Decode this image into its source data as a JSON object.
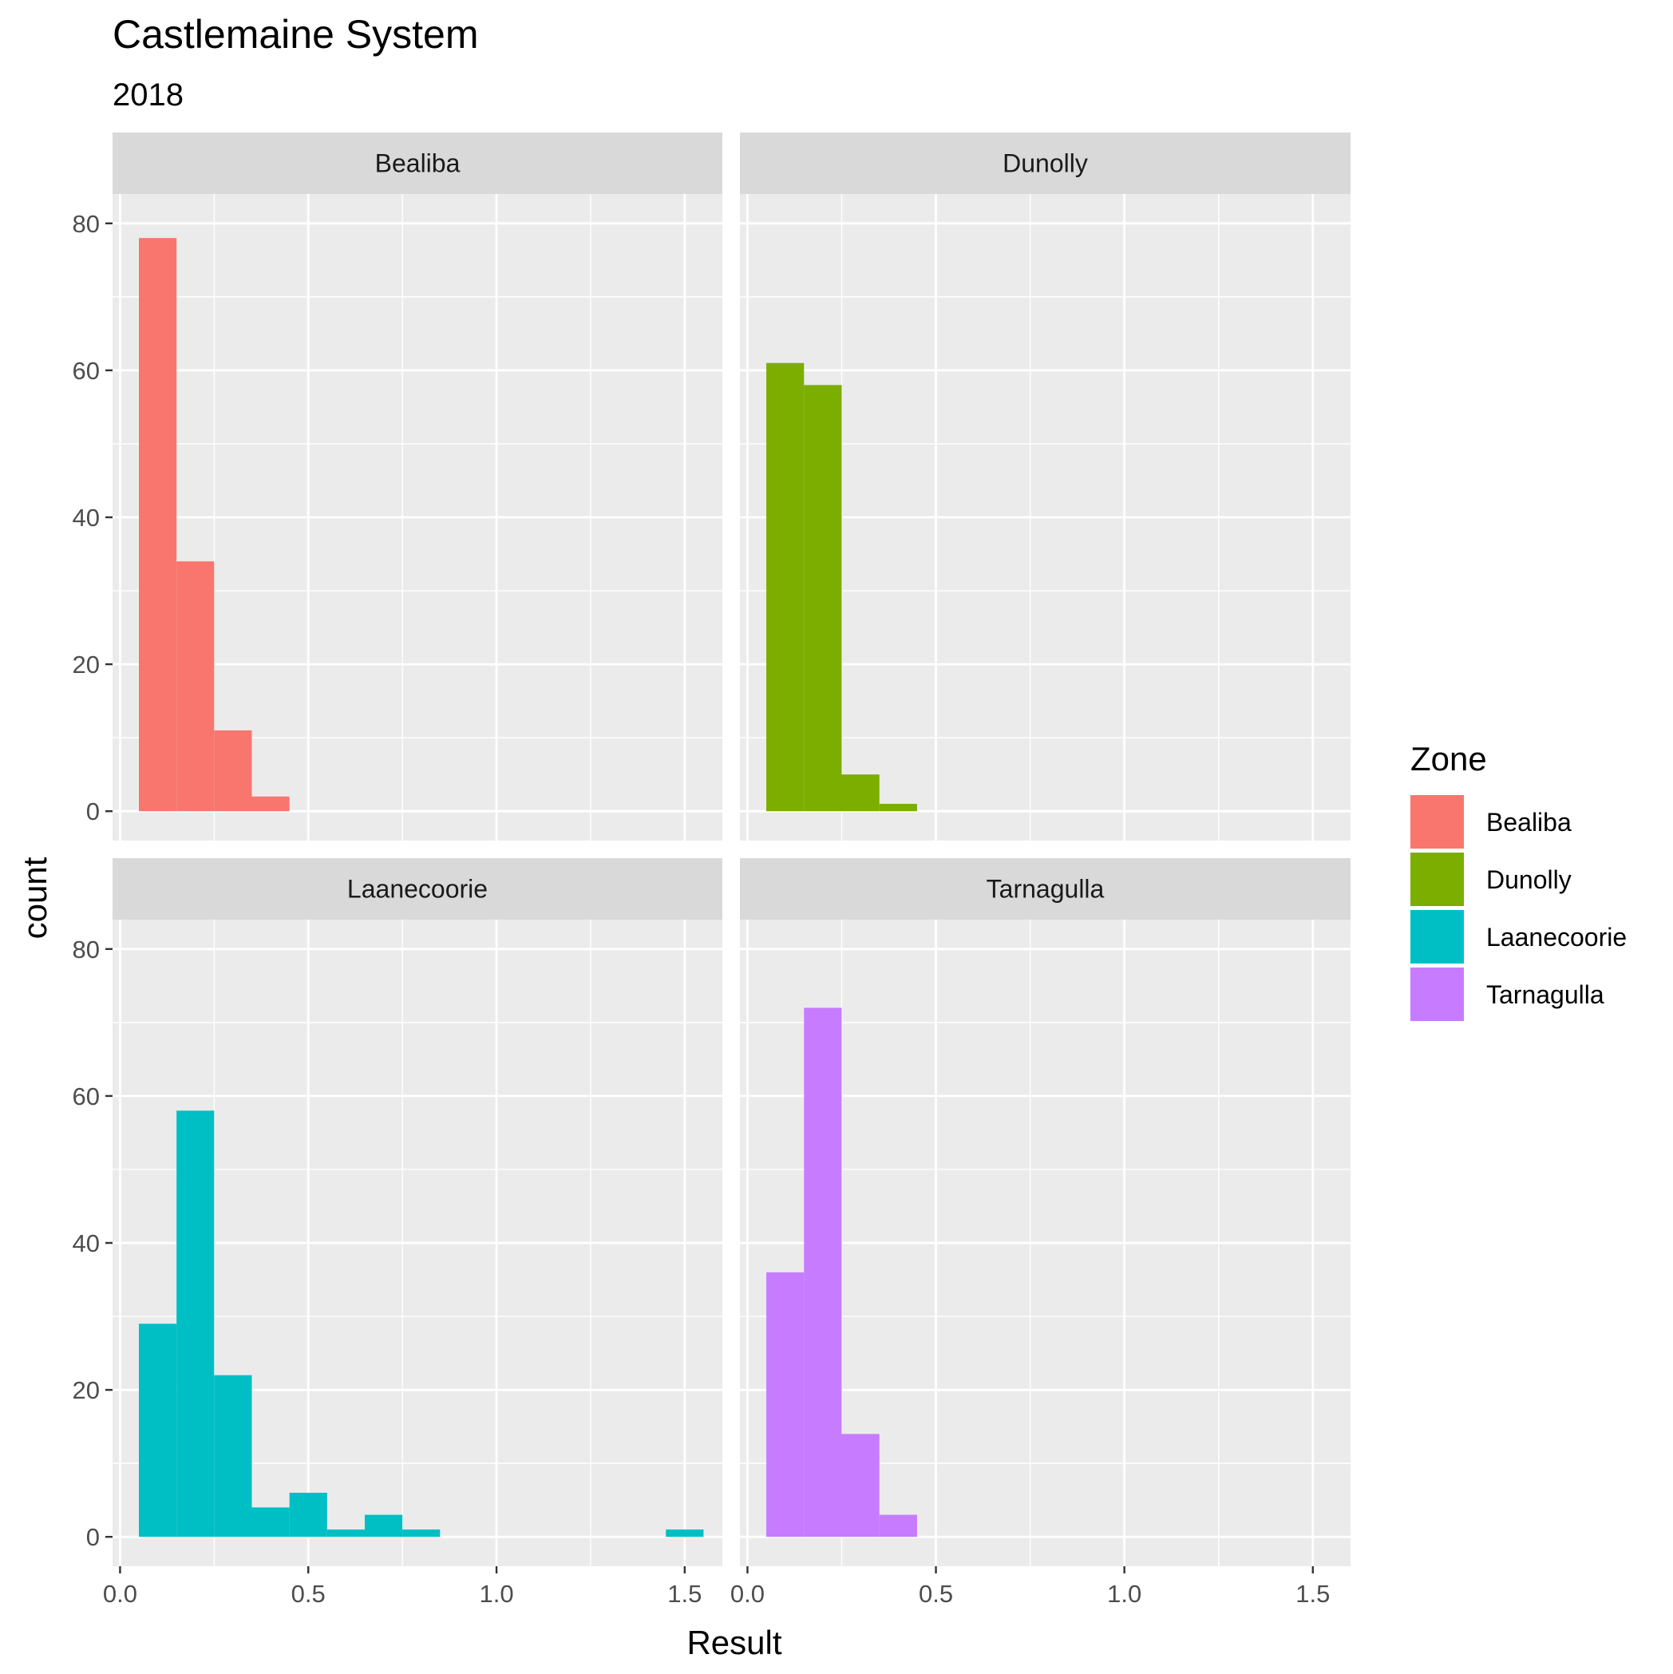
{
  "chart_data": {
    "type": "bar",
    "title": "Castlemaine System",
    "subtitle": "2018",
    "xlabel": "Result",
    "ylabel": "count",
    "xlim": [
      -0.02,
      1.6
    ],
    "ylim": [
      -4,
      84
    ],
    "x_ticks": [
      "0.0",
      "0.5",
      "1.0",
      "1.5"
    ],
    "y_ticks": [
      "0",
      "20",
      "40",
      "60",
      "80"
    ],
    "bin_width": 0.1,
    "grid": true,
    "legend": {
      "title": "Zone",
      "position": "right"
    },
    "series": [
      {
        "name": "Bealiba",
        "color": "#F8766D",
        "bins": [
          {
            "x_start": 0.05,
            "x_end": 0.15,
            "count": 78
          },
          {
            "x_start": 0.15,
            "x_end": 0.25,
            "count": 34
          },
          {
            "x_start": 0.25,
            "x_end": 0.35,
            "count": 11
          },
          {
            "x_start": 0.35,
            "x_end": 0.45,
            "count": 2
          }
        ]
      },
      {
        "name": "Dunolly",
        "color": "#7CAE00",
        "bins": [
          {
            "x_start": 0.05,
            "x_end": 0.15,
            "count": 61
          },
          {
            "x_start": 0.15,
            "x_end": 0.25,
            "count": 58
          },
          {
            "x_start": 0.25,
            "x_end": 0.35,
            "count": 5
          },
          {
            "x_start": 0.35,
            "x_end": 0.45,
            "count": 1
          }
        ]
      },
      {
        "name": "Laanecoorie",
        "color": "#00BFC4",
        "bins": [
          {
            "x_start": 0.05,
            "x_end": 0.15,
            "count": 29
          },
          {
            "x_start": 0.15,
            "x_end": 0.25,
            "count": 58
          },
          {
            "x_start": 0.25,
            "x_end": 0.35,
            "count": 22
          },
          {
            "x_start": 0.35,
            "x_end": 0.45,
            "count": 4
          },
          {
            "x_start": 0.45,
            "x_end": 0.55,
            "count": 6
          },
          {
            "x_start": 0.55,
            "x_end": 0.65,
            "count": 1
          },
          {
            "x_start": 0.65,
            "x_end": 0.75,
            "count": 3
          },
          {
            "x_start": 0.75,
            "x_end": 0.85,
            "count": 1
          },
          {
            "x_start": 1.45,
            "x_end": 1.55,
            "count": 1
          }
        ]
      },
      {
        "name": "Tarnagulla",
        "color": "#C77CFF",
        "bins": [
          {
            "x_start": 0.05,
            "x_end": 0.15,
            "count": 36
          },
          {
            "x_start": 0.15,
            "x_end": 0.25,
            "count": 72
          },
          {
            "x_start": 0.25,
            "x_end": 0.35,
            "count": 14
          },
          {
            "x_start": 0.35,
            "x_end": 0.45,
            "count": 3
          }
        ]
      }
    ]
  }
}
